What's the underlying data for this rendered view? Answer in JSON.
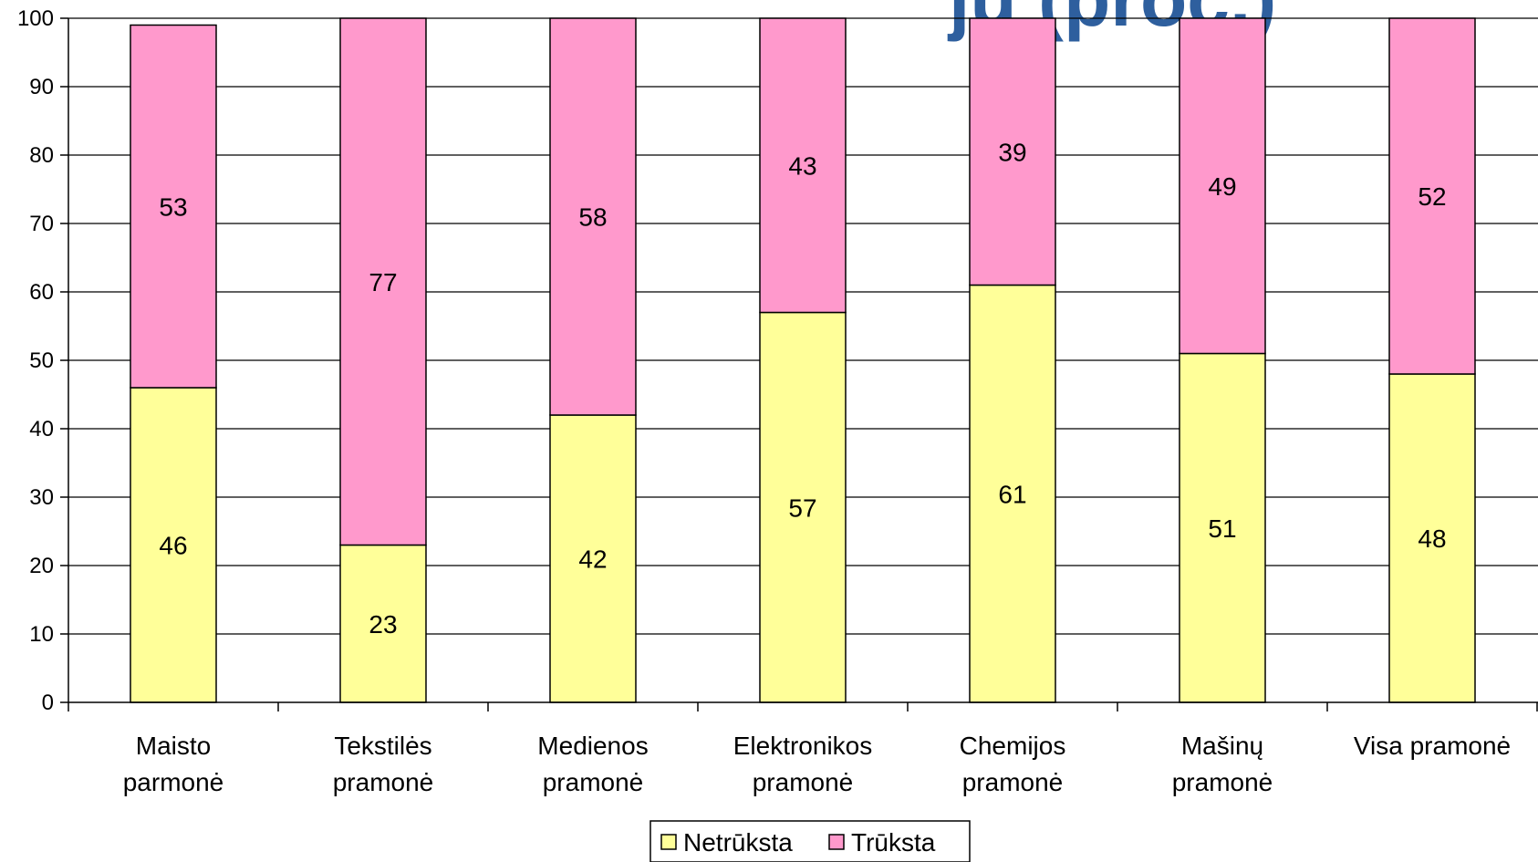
{
  "chart_data": {
    "type": "bar",
    "stacked": true,
    "categories": [
      [
        "Maisto",
        "parmonė"
      ],
      [
        "Tekstilės",
        "pramonė"
      ],
      [
        "Medienos",
        "pramonė"
      ],
      [
        "Elektronikos",
        "pramonė"
      ],
      [
        "Chemijos",
        "pramonė"
      ],
      [
        "Mašinų",
        "pramonė"
      ],
      [
        "Visa pramonė"
      ]
    ],
    "series": [
      {
        "name": "Netrūksta",
        "color": "#ffff99",
        "values": [
          46,
          23,
          42,
          57,
          61,
          51,
          48
        ]
      },
      {
        "name": "Trūksta",
        "color": "#ff99cc",
        "values": [
          53,
          77,
          58,
          43,
          39,
          49,
          52
        ]
      }
    ],
    "ylim": [
      0,
      100
    ],
    "yticks": [
      0,
      10,
      20,
      30,
      40,
      50,
      60,
      70,
      80,
      90,
      100
    ],
    "grid": true,
    "legend": "bottom",
    "title_fragment": "jų (proc.)"
  }
}
